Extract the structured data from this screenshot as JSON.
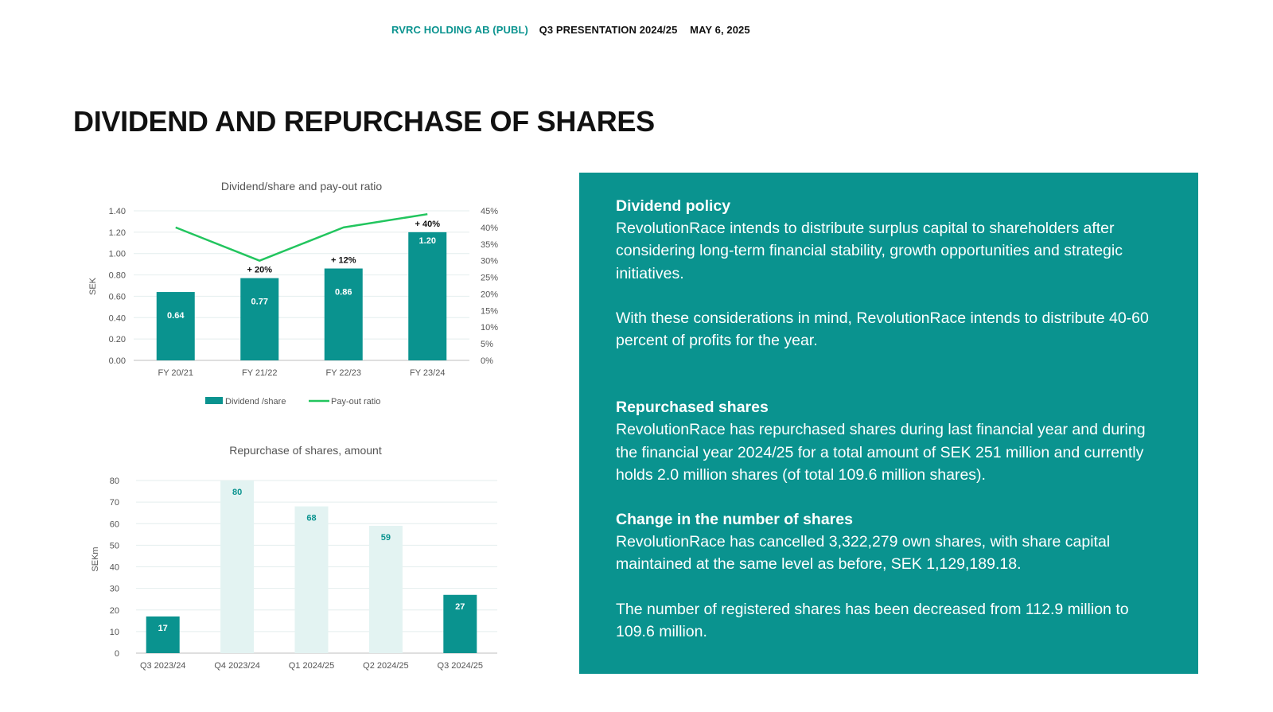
{
  "header": {
    "company": "RVRC HOLDING AB (PUBL)",
    "presentation": "Q3 PRESENTATION 2024/25",
    "date": "MAY 6, 2025"
  },
  "page_title": "DIVIDEND AND REPURCHASE OF SHARES",
  "colors": {
    "teal": "#0a938f",
    "light_teal": "#e3f3f2",
    "green_line": "#22c55e"
  },
  "chart_data": [
    {
      "type": "bar",
      "title": "Dividend/share and pay-out ratio",
      "ylabel": "SEK",
      "ylim": [
        0,
        1.4
      ],
      "y_ticks": [
        "0.00",
        "0.20",
        "0.40",
        "0.60",
        "0.80",
        "1.00",
        "1.20",
        "1.40"
      ],
      "y2lim": [
        0,
        45
      ],
      "y2_ticks": [
        "0%",
        "5%",
        "10%",
        "15%",
        "20%",
        "25%",
        "30%",
        "35%",
        "40%",
        "45%"
      ],
      "categories": [
        "FY 20/21",
        "FY 21/22",
        "FY 22/23",
        "FY 23/24"
      ],
      "series": [
        {
          "name": "Dividend /share",
          "type": "bar",
          "axis": "left",
          "values": [
            0.64,
            0.77,
            0.86,
            1.2
          ],
          "labels": [
            "0.64",
            "0.77",
            "0.86",
            "1.20"
          ]
        },
        {
          "name": "Pay-out ratio",
          "type": "line",
          "axis": "right",
          "values": [
            40,
            30,
            40,
            44
          ]
        }
      ],
      "annotations": [
        "",
        "+ 20%",
        "+ 12%",
        "+ 40%"
      ],
      "legend": "bottom",
      "grid": true
    },
    {
      "type": "bar",
      "title": "Repurchase of shares, amount",
      "ylabel": "SEKm",
      "ylim": [
        0,
        80
      ],
      "y_ticks": [
        "0",
        "10",
        "20",
        "30",
        "40",
        "50",
        "60",
        "70",
        "80"
      ],
      "categories": [
        "Q3 2023/24",
        "Q4 2023/24",
        "Q1 2024/25",
        "Q2 2024/25",
        "Q3 2024/25"
      ],
      "values": [
        17,
        80,
        68,
        59,
        27
      ],
      "labels": [
        "17",
        "80",
        "68",
        "59",
        "27"
      ],
      "highlighted": [
        true,
        false,
        false,
        false,
        true
      ],
      "grid": true
    }
  ],
  "panel": {
    "dividend_policy": {
      "heading": "Dividend policy",
      "p1": "RevolutionRace intends to distribute surplus capital to shareholders after considering long-term financial stability, growth opportunities and strategic initiatives.",
      "p2": "With these considerations in mind, RevolutionRace intends to distribute 40-60 percent of profits for the year."
    },
    "repurchased_shares": {
      "heading": "Repurchased shares",
      "p1": "RevolutionRace has repurchased shares during last financial year and during the financial year 2024/25 for a total amount of SEK 251 million and currently holds 2.0 million shares (of total 109.6 million shares)."
    },
    "change_shares": {
      "heading": "Change in the number of shares",
      "p1": "RevolutionRace has cancelled 3,322,279 own shares, with share capital maintained at the same level as before, SEK 1,129,189.18.",
      "p2": "The number of registered shares has been decreased from 112.9 million to 109.6 million."
    }
  }
}
